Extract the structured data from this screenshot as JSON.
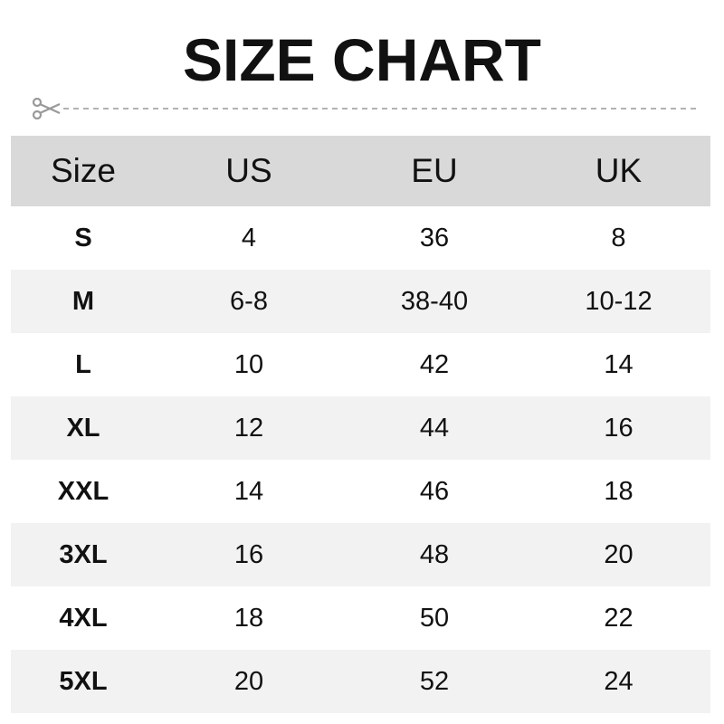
{
  "title": "SIZE CHART",
  "icons": {
    "cut": "scissors-icon"
  },
  "colors": {
    "header_bg": "#d9d9d9",
    "alt_row_bg": "#f2f2f2",
    "text": "#111111",
    "cutline": "#999999"
  },
  "table": {
    "headers": [
      "Size",
      "US",
      "EU",
      "UK"
    ],
    "rows": [
      [
        "S",
        "4",
        "36",
        "8"
      ],
      [
        "M",
        "6-8",
        "38-40",
        "10-12"
      ],
      [
        "L",
        "10",
        "42",
        "14"
      ],
      [
        "XL",
        "12",
        "44",
        "16"
      ],
      [
        "XXL",
        "14",
        "46",
        "18"
      ],
      [
        "3XL",
        "16",
        "48",
        "20"
      ],
      [
        "4XL",
        "18",
        "50",
        "22"
      ],
      [
        "5XL",
        "20",
        "52",
        "24"
      ]
    ]
  }
}
